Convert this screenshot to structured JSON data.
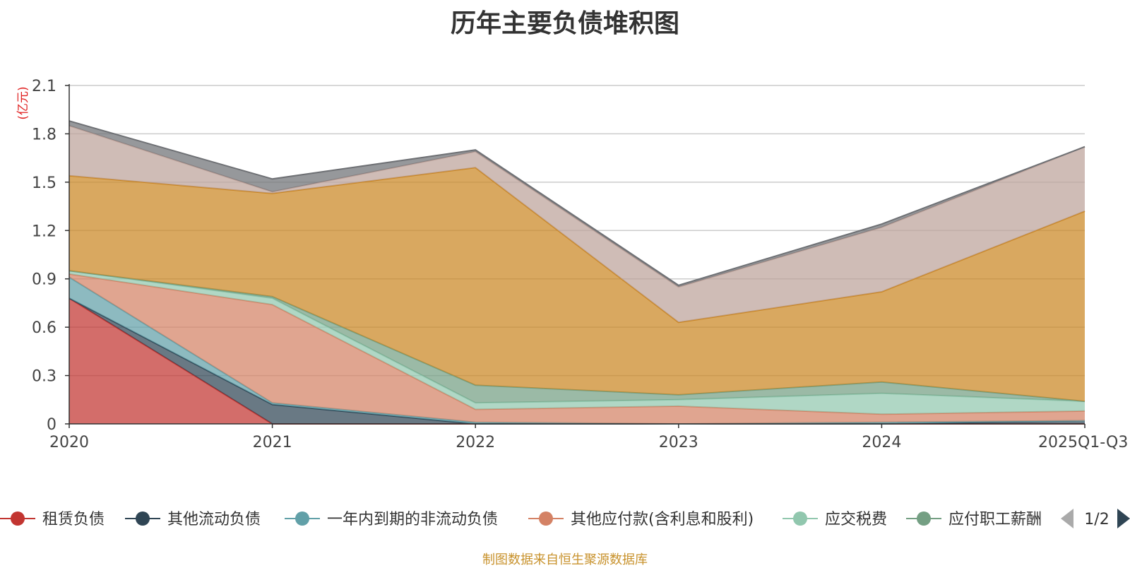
{
  "chart_data": {
    "type": "area",
    "stacked": true,
    "title": "历年主要负债堆积图",
    "ylabel": "(亿元)",
    "xlabel": "",
    "categories": [
      "2020",
      "2021",
      "2022",
      "2023",
      "2024",
      "2025Q1-Q3"
    ],
    "ylim": [
      0,
      2.1
    ],
    "yticks": [
      "0",
      "0.3",
      "0.6",
      "0.9",
      "1.2",
      "1.5",
      "1.8",
      "2.1"
    ],
    "grid": true,
    "series": [
      {
        "name": "租赁负债",
        "color": "#c23531",
        "values": [
          0.78,
          0.0,
          0.0,
          0.0,
          0.0,
          0.0
        ]
      },
      {
        "name": "其他流动负债",
        "color": "#2f4554",
        "values": [
          0.0,
          0.12,
          0.0,
          0.0,
          0.0,
          0.02
        ]
      },
      {
        "name": "一年内到期的非流动负债",
        "color": "#61a0a8",
        "values": [
          0.13,
          0.01,
          0.01,
          0.0,
          0.01,
          0.0
        ]
      },
      {
        "name": "其他应付款(含利息和股利)",
        "color": "#d48265",
        "values": [
          0.02,
          0.61,
          0.08,
          0.11,
          0.05,
          0.06
        ]
      },
      {
        "name": "应交税费",
        "color": "#91c7ae",
        "values": [
          0.02,
          0.04,
          0.04,
          0.04,
          0.13,
          0.06
        ]
      },
      {
        "name": "应付职工薪酬",
        "color": "#749f83",
        "values": [
          0.0,
          0.01,
          0.11,
          0.03,
          0.07,
          0.0
        ]
      },
      {
        "name": "",
        "color": "#ca8622",
        "values": [
          0.59,
          0.64,
          1.35,
          0.45,
          0.56,
          1.18
        ]
      },
      {
        "name": "",
        "color": "#bda29a",
        "values": [
          0.31,
          0.01,
          0.1,
          0.22,
          0.4,
          0.4
        ]
      },
      {
        "name": "",
        "color": "#6e7074",
        "values": [
          0.03,
          0.08,
          0.01,
          0.01,
          0.02,
          0.0
        ]
      }
    ],
    "legend": {
      "placement": "bottom",
      "page": "1/2"
    }
  },
  "footer": {
    "source": "制图数据来自恒生聚源数据库"
  }
}
